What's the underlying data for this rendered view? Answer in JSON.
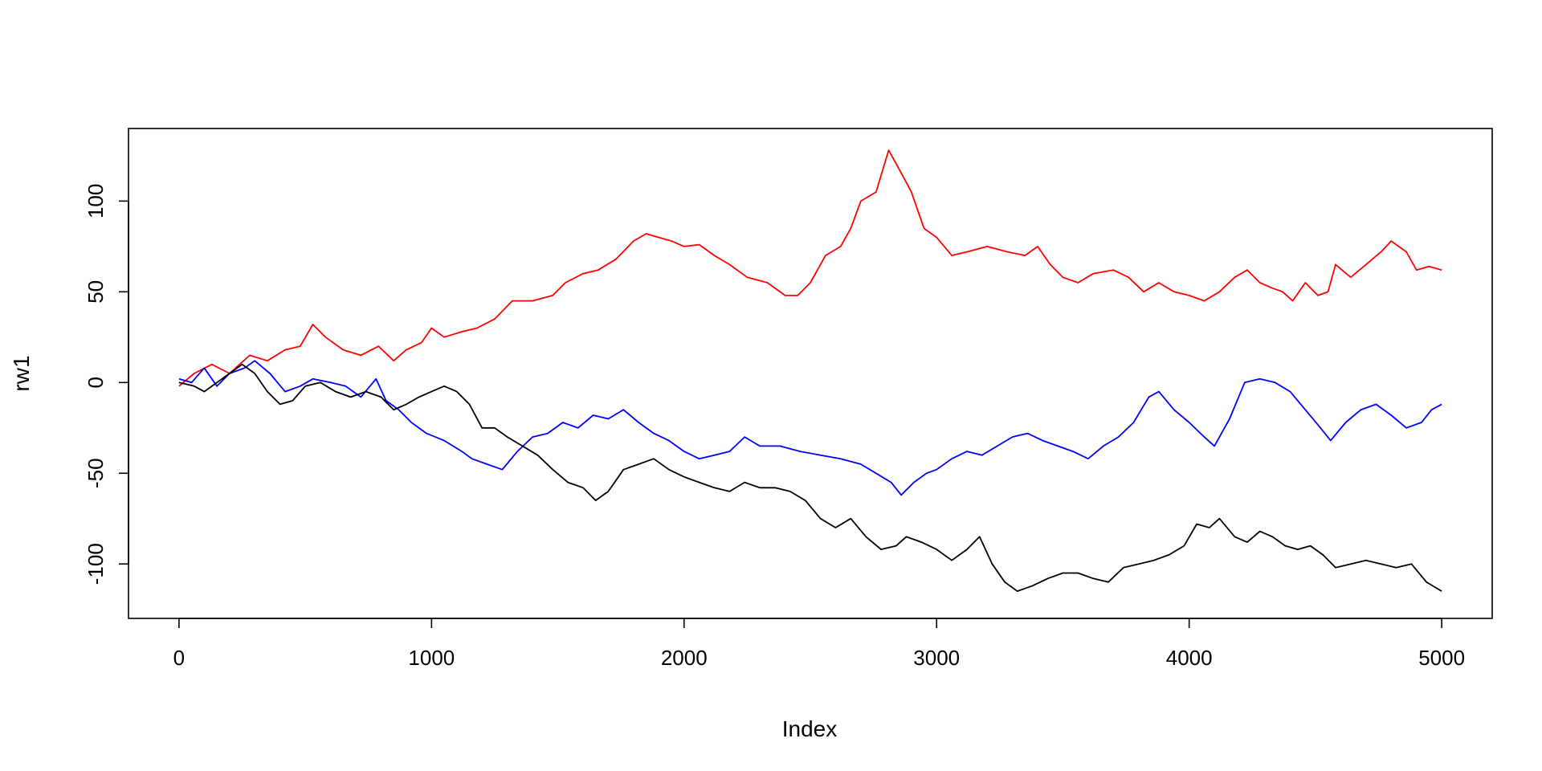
{
  "chart_data": {
    "type": "line",
    "title": "",
    "xlabel": "Index",
    "ylabel": "rw1",
    "xlim": [
      -200,
      5200
    ],
    "ylim": [
      -130,
      140
    ],
    "x_ticks": [
      0,
      1000,
      2000,
      3000,
      4000,
      5000
    ],
    "y_ticks": [
      -100,
      -50,
      0,
      50,
      100
    ],
    "x_tick_labels": [
      "0",
      "1000",
      "2000",
      "3000",
      "4000",
      "5000"
    ],
    "y_tick_labels": [
      "-100",
      "-50",
      "0",
      "50",
      "100"
    ],
    "grid": false,
    "legend": "none",
    "series": [
      {
        "color": "#ff0000",
        "x": [
          0,
          60,
          130,
          200,
          280,
          350,
          420,
          480,
          530,
          580,
          650,
          720,
          790,
          850,
          900,
          960,
          1000,
          1050,
          1120,
          1180,
          1250,
          1320,
          1400,
          1480,
          1530,
          1600,
          1660,
          1730,
          1800,
          1850,
          1900,
          1950,
          2000,
          2060,
          2120,
          2180,
          2250,
          2330,
          2400,
          2450,
          2500,
          2560,
          2620,
          2660,
          2700,
          2760,
          2810,
          2850,
          2900,
          2950,
          3000,
          3060,
          3120,
          3200,
          3280,
          3350,
          3400,
          3450,
          3500,
          3560,
          3620,
          3700,
          3760,
          3820,
          3880,
          3940,
          4000,
          4060,
          4120,
          4180,
          4230,
          4280,
          4330,
          4370,
          4410,
          4460,
          4510,
          4550,
          4580,
          4640,
          4700,
          4760,
          4800,
          4860,
          4900,
          4950,
          5000
        ],
        "y": [
          -2,
          5,
          10,
          5,
          15,
          12,
          18,
          20,
          32,
          25,
          18,
          15,
          20,
          12,
          18,
          22,
          30,
          25,
          28,
          30,
          35,
          45,
          45,
          48,
          55,
          60,
          62,
          68,
          78,
          82,
          80,
          78,
          75,
          76,
          70,
          65,
          58,
          55,
          48,
          48,
          55,
          70,
          75,
          85,
          100,
          105,
          128,
          118,
          105,
          85,
          80,
          70,
          72,
          75,
          72,
          70,
          75,
          65,
          58,
          55,
          60,
          62,
          58,
          50,
          55,
          50,
          48,
          45,
          50,
          58,
          62,
          55,
          52,
          50,
          45,
          55,
          48,
          50,
          65,
          58,
          65,
          72,
          78,
          72,
          62,
          64,
          62
        ]
      },
      {
        "color": "#0000ff",
        "x": [
          0,
          50,
          100,
          150,
          200,
          260,
          300,
          360,
          420,
          480,
          530,
          600,
          660,
          720,
          780,
          820,
          870,
          920,
          980,
          1050,
          1120,
          1160,
          1220,
          1280,
          1340,
          1400,
          1460,
          1520,
          1580,
          1640,
          1700,
          1760,
          1820,
          1880,
          1940,
          2000,
          2060,
          2120,
          2180,
          2240,
          2300,
          2380,
          2460,
          2540,
          2620,
          2700,
          2760,
          2820,
          2860,
          2910,
          2960,
          3000,
          3060,
          3120,
          3180,
          3240,
          3300,
          3360,
          3420,
          3480,
          3540,
          3600,
          3660,
          3720,
          3780,
          3840,
          3880,
          3940,
          4000,
          4060,
          4100,
          4160,
          4220,
          4280,
          4340,
          4400,
          4460,
          4520,
          4560,
          4620,
          4680,
          4740,
          4800,
          4860,
          4920,
          4960,
          5000
        ],
        "y": [
          2,
          0,
          8,
          -2,
          5,
          8,
          12,
          5,
          -5,
          -2,
          2,
          0,
          -2,
          -8,
          2,
          -10,
          -15,
          -22,
          -28,
          -32,
          -38,
          -42,
          -45,
          -48,
          -38,
          -30,
          -28,
          -22,
          -25,
          -18,
          -20,
          -15,
          -22,
          -28,
          -32,
          -38,
          -42,
          -40,
          -38,
          -30,
          -35,
          -35,
          -38,
          -40,
          -42,
          -45,
          -50,
          -55,
          -62,
          -55,
          -50,
          -48,
          -42,
          -38,
          -40,
          -35,
          -30,
          -28,
          -32,
          -35,
          -38,
          -42,
          -35,
          -30,
          -22,
          -8,
          -5,
          -15,
          -22,
          -30,
          -35,
          -20,
          0,
          2,
          0,
          -5,
          -15,
          -25,
          -32,
          -22,
          -15,
          -12,
          -18,
          -25,
          -22,
          -15,
          -12
        ]
      },
      {
        "color": "#000000",
        "x": [
          0,
          60,
          100,
          150,
          200,
          250,
          300,
          350,
          400,
          450,
          500,
          560,
          620,
          680,
          740,
          800,
          850,
          900,
          950,
          1000,
          1050,
          1100,
          1150,
          1200,
          1250,
          1300,
          1360,
          1420,
          1480,
          1540,
          1600,
          1650,
          1700,
          1760,
          1820,
          1880,
          1940,
          2000,
          2060,
          2120,
          2180,
          2240,
          2300,
          2360,
          2420,
          2480,
          2540,
          2600,
          2660,
          2720,
          2780,
          2840,
          2880,
          2940,
          3000,
          3060,
          3120,
          3170,
          3220,
          3270,
          3320,
          3380,
          3440,
          3500,
          3560,
          3620,
          3680,
          3740,
          3800,
          3860,
          3920,
          3980,
          4030,
          4080,
          4120,
          4180,
          4230,
          4280,
          4330,
          4380,
          4430,
          4480,
          4530,
          4580,
          4640,
          4700,
          4760,
          4820,
          4880,
          4940,
          5000
        ],
        "y": [
          0,
          -2,
          -5,
          0,
          5,
          10,
          5,
          -5,
          -12,
          -10,
          -2,
          0,
          -5,
          -8,
          -5,
          -8,
          -15,
          -12,
          -8,
          -5,
          -2,
          -5,
          -12,
          -25,
          -25,
          -30,
          -35,
          -40,
          -48,
          -55,
          -58,
          -65,
          -60,
          -48,
          -45,
          -42,
          -48,
          -52,
          -55,
          -58,
          -60,
          -55,
          -58,
          -58,
          -60,
          -65,
          -75,
          -80,
          -75,
          -85,
          -92,
          -90,
          -85,
          -88,
          -92,
          -98,
          -92,
          -85,
          -100,
          -110,
          -115,
          -112,
          -108,
          -105,
          -105,
          -108,
          -110,
          -102,
          -100,
          -98,
          -95,
          -90,
          -78,
          -80,
          -75,
          -85,
          -88,
          -82,
          -85,
          -90,
          -92,
          -90,
          -95,
          -102,
          -100,
          -98,
          -100,
          -102,
          -100,
          -110,
          -115
        ]
      }
    ]
  }
}
